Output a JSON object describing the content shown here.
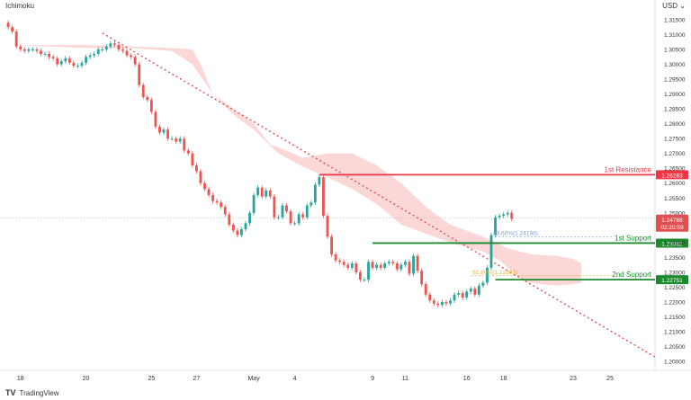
{
  "header": {
    "indicator": "Ichimoku",
    "currency": "USD",
    "menu_glyph": "⌄"
  },
  "footer": {
    "brand": "TradingView",
    "logo": "TV"
  },
  "colors": {
    "bull": "#26a69a",
    "bear": "#ef5350",
    "cloud": "#f9caca",
    "resistance": "#f23645",
    "support": "#1b8a2f",
    "fib": "#7a9fd6",
    "fib_alt": "#e3b04b",
    "trendline": "#e05050",
    "price_label": "#e05050",
    "axis_text": "#333333"
  },
  "chart_data": {
    "type": "candlestick",
    "indicator": "Ichimoku",
    "y_axis": {
      "ticks": [
        1.315,
        1.31,
        1.305,
        1.3,
        1.295,
        1.29,
        1.285,
        1.28,
        1.275,
        1.27,
        1.265,
        1.26,
        1.255,
        1.25,
        1.245,
        1.24,
        1.235,
        1.23,
        1.225,
        1.22,
        1.215,
        1.21,
        1.205,
        1.2
      ],
      "tick_labels": [
        "1.31500",
        "1.31000",
        "1.30500",
        "1.30000",
        "1.29500",
        "1.29000",
        "1.28500",
        "1.28000",
        "1.27500",
        "1.27000",
        "1.26500",
        "1.26000",
        "1.25500",
        "1.25000",
        "1.24500",
        "1.24000",
        "1.23500",
        "1.23000",
        "1.22500",
        "1.22000",
        "1.21500",
        "1.21000",
        "1.20500",
        "1.20000"
      ],
      "ylim": [
        1.197,
        1.318
      ]
    },
    "x_axis": {
      "labels": [
        {
          "text": "18",
          "bar": 3
        },
        {
          "text": "20",
          "bar": 19
        },
        {
          "text": "25",
          "bar": 35
        },
        {
          "text": "27",
          "bar": 46
        },
        {
          "text": "May",
          "bar": 60
        },
        {
          "text": "4",
          "bar": 70
        },
        {
          "text": "9",
          "bar": 89
        },
        {
          "text": "11",
          "bar": 97
        },
        {
          "text": "16",
          "bar": 112
        },
        {
          "text": "18",
          "bar": 121
        },
        {
          "text": "23",
          "bar": 138
        },
        {
          "text": "25",
          "bar": 147
        }
      ],
      "bar_range": [
        -2,
        158
      ]
    },
    "candles_close": [
      1.3125,
      1.311,
      1.306,
      1.305,
      1.3045,
      1.305,
      1.305,
      1.3045,
      1.3035,
      1.3035,
      1.3025,
      1.302,
      1.3,
      1.301,
      1.302,
      1.3005,
      1.2995,
      1.2995,
      1.3005,
      1.3025,
      1.303,
      1.3035,
      1.305,
      1.305,
      1.306,
      1.307,
      1.3065,
      1.305,
      1.3045,
      1.303,
      1.3025,
      1.3,
      1.293,
      1.289,
      1.288,
      1.284,
      1.279,
      1.277,
      1.278,
      1.275,
      1.275,
      1.274,
      1.275,
      1.271,
      1.27,
      1.266,
      1.264,
      1.26,
      1.258,
      1.256,
      1.254,
      1.2535,
      1.252,
      1.2495,
      1.246,
      1.244,
      1.2425,
      1.2445,
      1.2465,
      1.25,
      1.256,
      1.2585,
      1.2555,
      1.2575,
      1.2555,
      1.2485,
      1.2485,
      1.2525,
      1.2505,
      1.2465,
      1.2465,
      1.2495,
      1.2485,
      1.2525,
      1.2535,
      1.2595,
      1.262,
      1.249,
      1.242,
      1.236,
      1.234,
      1.2335,
      1.2325,
      1.2315,
      1.233,
      1.23,
      1.2275,
      1.2275,
      1.2335,
      1.2315,
      1.2325,
      1.2315,
      1.233,
      1.2335,
      1.233,
      1.231,
      1.2325,
      1.2335,
      1.2295,
      1.2355,
      1.2305,
      1.226,
      1.2225,
      1.2205,
      1.2195,
      1.219,
      1.22,
      1.2195,
      1.2205,
      1.2225,
      1.223,
      1.2215,
      1.2235,
      1.2245,
      1.2225,
      1.2255,
      1.2265,
      1.2315,
      1.2425,
      1.2485,
      1.249,
      1.2495,
      1.25,
      1.248
    ],
    "cloud": {
      "upper": [
        [
          2,
          1.3065
        ],
        [
          18,
          1.3065
        ],
        [
          30,
          1.306
        ],
        [
          40,
          1.3055
        ],
        [
          45,
          1.305
        ],
        [
          47,
          1.3
        ],
        [
          50,
          1.29
        ],
        [
          55,
          1.285
        ],
        [
          60,
          1.28
        ],
        [
          64,
          1.273
        ],
        [
          68,
          1.271
        ],
        [
          72,
          1.2685
        ],
        [
          78,
          1.27
        ],
        [
          84,
          1.27
        ],
        [
          90,
          1.266
        ],
        [
          96,
          1.26
        ],
        [
          102,
          1.252
        ],
        [
          108,
          1.246
        ],
        [
          112,
          1.244
        ],
        [
          116,
          1.242
        ],
        [
          122,
          1.238
        ],
        [
          128,
          1.236
        ],
        [
          134,
          1.2355
        ],
        [
          138,
          1.2345
        ],
        [
          140,
          1.233
        ]
      ],
      "lower": [
        [
          2,
          1.3065
        ],
        [
          18,
          1.3055
        ],
        [
          30,
          1.3055
        ],
        [
          40,
          1.3045
        ],
        [
          45,
          1.3
        ],
        [
          50,
          1.29
        ],
        [
          55,
          1.283
        ],
        [
          60,
          1.278
        ],
        [
          66,
          1.27
        ],
        [
          72,
          1.2655
        ],
        [
          78,
          1.262
        ],
        [
          84,
          1.258
        ],
        [
          90,
          1.253
        ],
        [
          96,
          1.246
        ],
        [
          102,
          1.243
        ],
        [
          108,
          1.24
        ],
        [
          112,
          1.2385
        ],
        [
          116,
          1.237
        ],
        [
          120,
          1.234
        ],
        [
          126,
          1.227
        ],
        [
          130,
          1.226
        ],
        [
          134,
          1.2255
        ],
        [
          138,
          1.226
        ],
        [
          140,
          1.2265
        ]
      ]
    },
    "trendline": {
      "from": [
        23,
        1.3105
      ],
      "to": [
        158,
        1.2015
      ]
    },
    "levels": [
      {
        "name": "1st Resistance",
        "value": 1.26283,
        "label": "1.26283",
        "from_bar": 76,
        "role": "resistance"
      },
      {
        "name": "1st Support",
        "value": 1.23982,
        "label": "1.23982",
        "from_bar": 89,
        "role": "support"
      },
      {
        "name": "2nd Support",
        "value": 1.22751,
        "label": "1.22751",
        "from_bar": 119,
        "role": "support"
      }
    ],
    "fib_levels": [
      {
        "label": "23.60%(1.24198)",
        "value": 1.24198,
        "from_bar": 118,
        "role": "fib"
      },
      {
        "label": "61.80%(1.22883)",
        "value": 1.22883,
        "from_bar": 113,
        "role": "fib_alt"
      }
    ],
    "current_price": {
      "value": 1.24788,
      "label": "1.24788",
      "countdown": "02:20:59"
    },
    "current_price_line": 1.2483
  }
}
